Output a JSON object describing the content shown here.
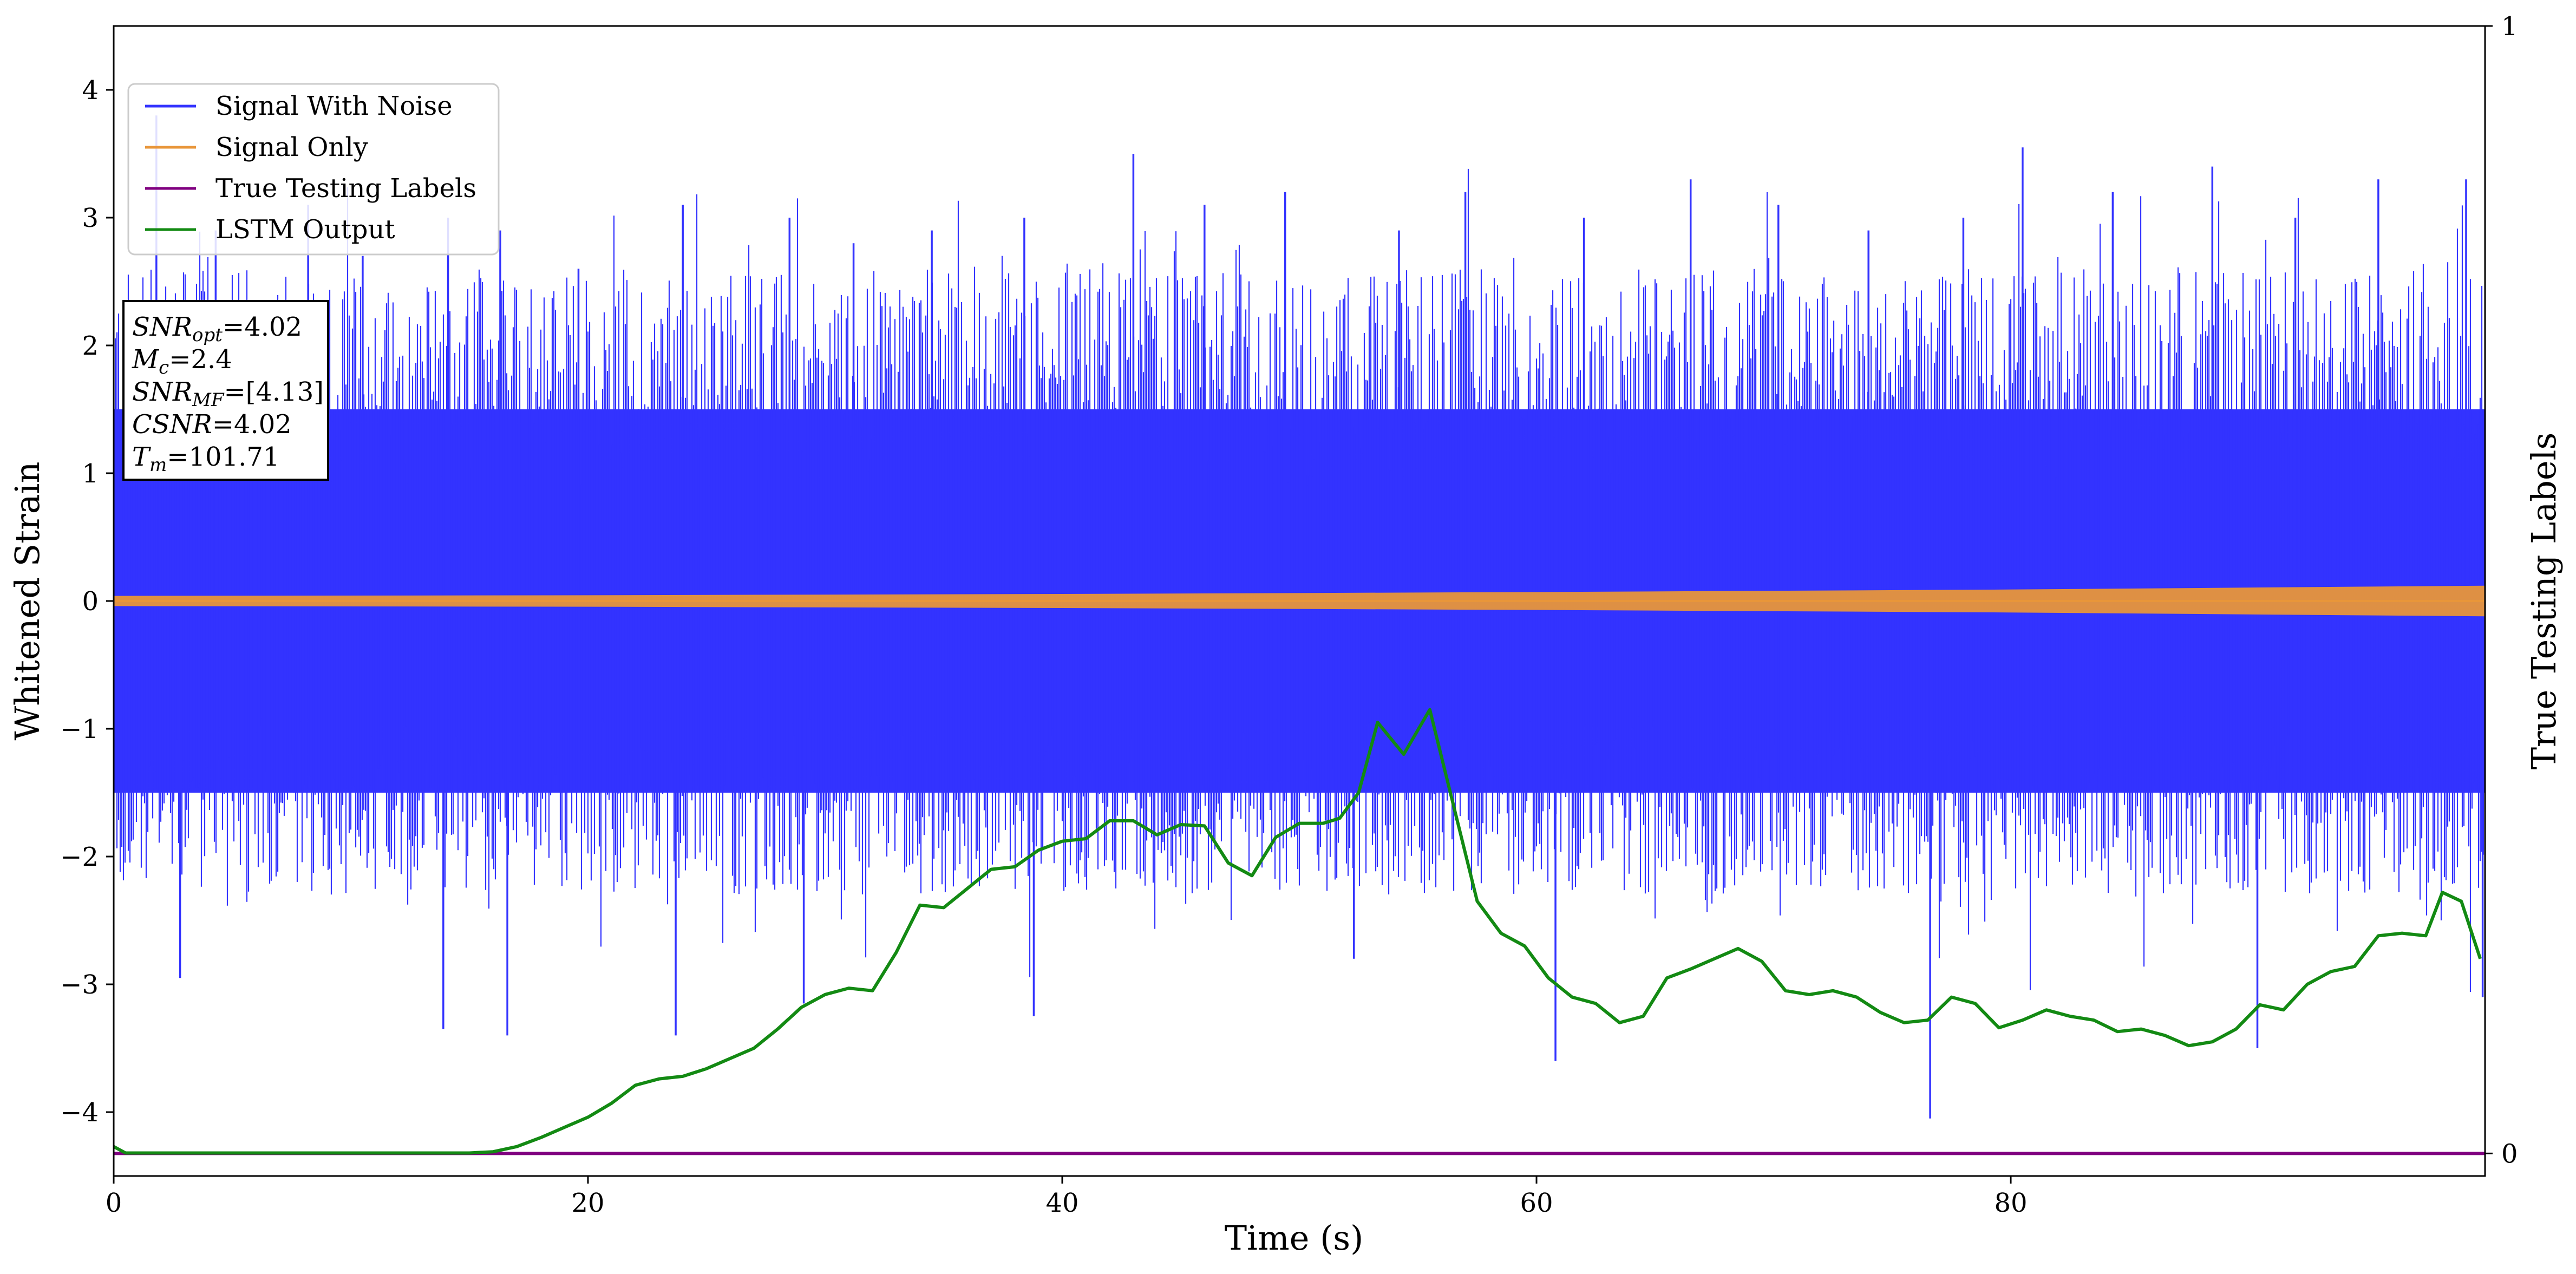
{
  "chart_data": {
    "type": "line",
    "xlabel": "Time (s)",
    "ylabel": "Whitened Strain",
    "y2label": "True Testing Labels",
    "xlim": [
      0,
      100
    ],
    "ylim": [
      -4.5,
      4.5
    ],
    "y2lim": [
      -0.02,
      1.0
    ],
    "x_ticks": [
      0,
      20,
      40,
      60,
      80
    ],
    "y_ticks": [
      -4,
      -3,
      -2,
      -1,
      0,
      1,
      2,
      3,
      4
    ],
    "y2_ticks": [
      0,
      1
    ],
    "grid": false,
    "legend_position": "upper left",
    "colors": {
      "noise": "#3333ff",
      "signal": "#e8963a",
      "labels": "#800080",
      "lstm": "#138a13"
    },
    "series": [
      {
        "name": "Signal With Noise",
        "description_envelope": {
          "x": [
            0,
            10,
            20,
            30,
            40,
            50,
            60,
            70,
            80,
            90,
            100
          ],
          "upper_typical": [
            1.5,
            1.5,
            1.5,
            1.5,
            1.5,
            1.5,
            1.5,
            1.5,
            1.5,
            1.5,
            1.5
          ],
          "lower_typical": [
            -1.5,
            -1.5,
            -1.5,
            -1.5,
            -1.5,
            -1.5,
            -1.5,
            -1.5,
            -1.5,
            -1.5,
            -1.5
          ]
        },
        "spikes": [
          {
            "x": 1.8,
            "y": 3.8
          },
          {
            "x": 4.3,
            "y": 2.9
          },
          {
            "x": 8.2,
            "y": 3.1
          },
          {
            "x": 10.5,
            "y": 2.7
          },
          {
            "x": 14.1,
            "y": 3.0
          },
          {
            "x": 16.3,
            "y": 2.9
          },
          {
            "x": 19.6,
            "y": 2.6
          },
          {
            "x": 24.0,
            "y": 3.1
          },
          {
            "x": 28.5,
            "y": 3.0
          },
          {
            "x": 31.2,
            "y": 2.8
          },
          {
            "x": 34.5,
            "y": 2.9
          },
          {
            "x": 38.4,
            "y": 3.0
          },
          {
            "x": 43.0,
            "y": 3.5
          },
          {
            "x": 46.0,
            "y": 3.1
          },
          {
            "x": 49.4,
            "y": 3.2
          },
          {
            "x": 54.2,
            "y": 2.9
          },
          {
            "x": 57.0,
            "y": 3.2
          },
          {
            "x": 62.0,
            "y": 3.0
          },
          {
            "x": 66.5,
            "y": 3.3
          },
          {
            "x": 70.2,
            "y": 3.1
          },
          {
            "x": 74.0,
            "y": 2.9
          },
          {
            "x": 78.0,
            "y": 3.0
          },
          {
            "x": 80.5,
            "y": 3.55
          },
          {
            "x": 84.3,
            "y": 3.2
          },
          {
            "x": 88.5,
            "y": 3.4
          },
          {
            "x": 92.0,
            "y": 3.0
          },
          {
            "x": 95.5,
            "y": 3.3
          },
          {
            "x": 99.2,
            "y": 3.3
          },
          {
            "x": 2.8,
            "y": -2.95
          },
          {
            "x": 13.9,
            "y": -3.35
          },
          {
            "x": 16.6,
            "y": -3.4
          },
          {
            "x": 23.7,
            "y": -3.4
          },
          {
            "x": 29.1,
            "y": -3.15
          },
          {
            "x": 38.8,
            "y": -3.25
          },
          {
            "x": 52.3,
            "y": -2.8
          },
          {
            "x": 60.8,
            "y": -3.6
          },
          {
            "x": 76.6,
            "y": -4.05
          },
          {
            "x": 90.4,
            "y": -3.5
          },
          {
            "x": 99.9,
            "y": -3.1
          }
        ]
      },
      {
        "name": "Signal Only",
        "x": [
          0,
          20,
          40,
          60,
          80,
          100
        ],
        "amplitude": [
          0.04,
          0.045,
          0.055,
          0.07,
          0.09,
          0.12
        ]
      },
      {
        "name": "True Testing Labels",
        "axis": "right",
        "x": [
          0,
          100
        ],
        "values": [
          0,
          0
        ]
      },
      {
        "name": "LSTM Output",
        "axis": "left",
        "x": [
          0,
          0.5,
          5,
          10,
          15,
          16,
          17,
          18,
          19,
          20,
          21,
          22,
          23,
          24,
          25,
          26,
          27,
          28,
          29,
          30,
          31,
          32,
          33,
          34,
          35,
          36,
          37,
          38,
          39,
          40,
          41,
          42,
          43,
          44,
          45,
          46,
          47,
          48,
          49,
          50,
          51,
          51.7,
          52.5,
          53.3,
          54.4,
          55.5,
          56.5,
          57.5,
          58.5,
          59.5,
          60.5,
          61.5,
          62.5,
          63.5,
          64.5,
          65.5,
          66.5,
          67.5,
          68.5,
          69.5,
          70.5,
          71.5,
          72.5,
          73.5,
          74.5,
          75.5,
          76.5,
          77.5,
          78.5,
          79.5,
          80.5,
          81.5,
          82.5,
          83.5,
          84.5,
          85.5,
          86.5,
          87.5,
          88.5,
          89.5,
          90.5,
          91.5,
          92.5,
          93.5,
          94.5,
          95.5,
          96.5,
          97.5,
          98.2,
          99,
          99.8
        ],
        "values": [
          -4.27,
          -4.32,
          -4.32,
          -4.32,
          -4.32,
          -4.31,
          -4.27,
          -4.2,
          -4.12,
          -4.04,
          -3.93,
          -3.79,
          -3.74,
          -3.72,
          -3.66,
          -3.58,
          -3.5,
          -3.35,
          -3.18,
          -3.08,
          -3.03,
          -3.05,
          -2.75,
          -2.38,
          -2.4,
          -2.25,
          -2.1,
          -2.08,
          -1.95,
          -1.88,
          -1.86,
          -1.72,
          -1.72,
          -1.83,
          -1.75,
          -1.76,
          -2.05,
          -2.15,
          -1.85,
          -1.74,
          -1.74,
          -1.7,
          -1.5,
          -0.95,
          -1.2,
          -0.85,
          -1.6,
          -2.35,
          -2.6,
          -2.7,
          -2.95,
          -3.1,
          -3.15,
          -3.3,
          -3.25,
          -2.95,
          -2.88,
          -2.8,
          -2.72,
          -2.82,
          -3.05,
          -3.08,
          -3.05,
          -3.1,
          -3.22,
          -3.3,
          -3.28,
          -3.1,
          -3.15,
          -3.34,
          -3.28,
          -3.2,
          -3.25,
          -3.28,
          -3.37,
          -3.35,
          -3.4,
          -3.48,
          -3.45,
          -3.35,
          -3.16,
          -3.2,
          -3.0,
          -2.9,
          -2.86,
          -2.62,
          -2.6,
          -2.62,
          -2.28,
          -2.35,
          -2.8
        ]
      }
    ],
    "annotation_lines": [
      {
        "sym": "SNR",
        "sub": "opt",
        "text": "=4.02"
      },
      {
        "sym": "M",
        "sub": "c",
        "text": "=2.4"
      },
      {
        "sym": "SNR",
        "sub": "MF",
        "text": "=[4.13]"
      },
      {
        "sym": "CSNR",
        "sub": "",
        "text": "=4.02"
      },
      {
        "sym": "T",
        "sub": "m",
        "text": "=101.71"
      }
    ]
  }
}
